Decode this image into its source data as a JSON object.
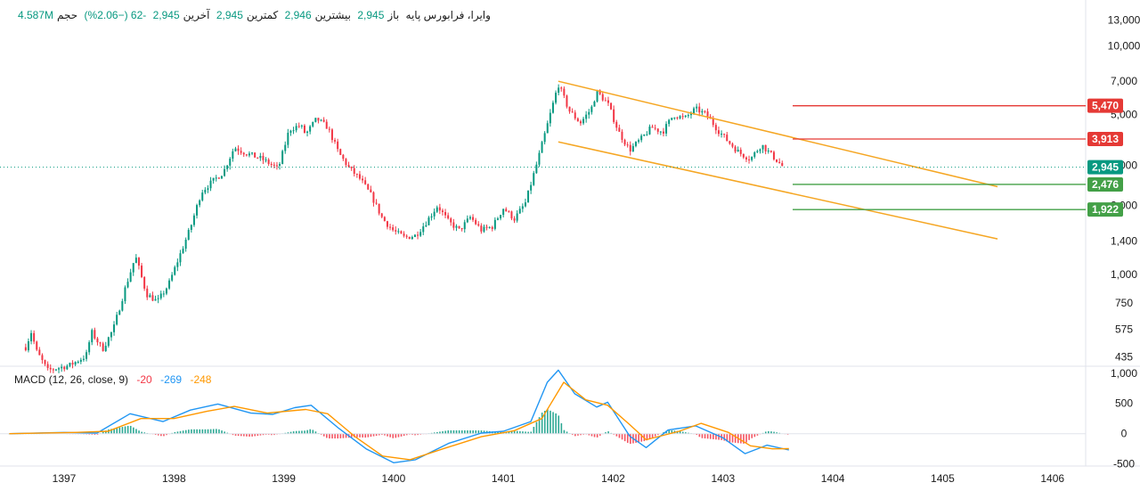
{
  "legend": {
    "symbol": "وایرا، فرابورس پایه",
    "open_label": "باز",
    "open": "2,945",
    "high_label": "بیشترین",
    "high": "2,946",
    "low_label": "کمترین",
    "low": "2,945",
    "close_label": "آخرین",
    "close": "2,945",
    "change": "-62 (−2.06%)",
    "volume_label": "حجم",
    "volume": "4.587M"
  },
  "macd_legend": {
    "label": "MACD (12, 26, close, 9)",
    "histogram": "-20",
    "macd": "-269",
    "signal": "-248"
  },
  "colors": {
    "up": "#089981",
    "down": "#f23645",
    "channel": "#f5a623",
    "macd_line": "#2196f3",
    "signal_line": "#ff9800",
    "resistance": "#e53935",
    "support": "#43a047",
    "last_price": "#089981"
  },
  "chart_data": [
    {
      "type": "candlestick",
      "scale": "log",
      "x_axis_ticks": [
        "1397",
        "1398",
        "1399",
        "1400",
        "1401",
        "1402",
        "1403",
        "1404",
        "1405",
        "1406"
      ],
      "y_axis_ticks": [
        "13,000",
        "10,000",
        "7,000",
        "5,000",
        "3,000",
        "2,000",
        "1,400",
        "1,000",
        "750",
        "575",
        "435"
      ],
      "ylim": [
        400,
        14000
      ],
      "price_path": [
        {
          "t": 1396.65,
          "p": 480
        },
        {
          "t": 1396.7,
          "p": 560
        },
        {
          "t": 1396.75,
          "p": 460
        },
        {
          "t": 1396.85,
          "p": 380
        },
        {
          "t": 1396.95,
          "p": 390
        },
        {
          "t": 1397.05,
          "p": 400
        },
        {
          "t": 1397.2,
          "p": 440
        },
        {
          "t": 1397.25,
          "p": 560
        },
        {
          "t": 1397.35,
          "p": 470
        },
        {
          "t": 1397.45,
          "p": 580
        },
        {
          "t": 1397.55,
          "p": 850
        },
        {
          "t": 1397.65,
          "p": 1200
        },
        {
          "t": 1397.75,
          "p": 820
        },
        {
          "t": 1397.85,
          "p": 760
        },
        {
          "t": 1397.95,
          "p": 900
        },
        {
          "t": 1398.05,
          "p": 1200
        },
        {
          "t": 1398.15,
          "p": 1600
        },
        {
          "t": 1398.25,
          "p": 2300
        },
        {
          "t": 1398.35,
          "p": 2550
        },
        {
          "t": 1398.45,
          "p": 2800
        },
        {
          "t": 1398.55,
          "p": 3600
        },
        {
          "t": 1398.65,
          "p": 3400
        },
        {
          "t": 1398.8,
          "p": 3200
        },
        {
          "t": 1398.95,
          "p": 2900
        },
        {
          "t": 1399.05,
          "p": 4300
        },
        {
          "t": 1399.15,
          "p": 4500
        },
        {
          "t": 1399.2,
          "p": 4100
        },
        {
          "t": 1399.3,
          "p": 4800
        },
        {
          "t": 1399.4,
          "p": 4400
        },
        {
          "t": 1399.5,
          "p": 3400
        },
        {
          "t": 1399.6,
          "p": 2900
        },
        {
          "t": 1399.7,
          "p": 2600
        },
        {
          "t": 1399.8,
          "p": 2200
        },
        {
          "t": 1399.9,
          "p": 1750
        },
        {
          "t": 1400.0,
          "p": 1550
        },
        {
          "t": 1400.1,
          "p": 1450
        },
        {
          "t": 1400.2,
          "p": 1480
        },
        {
          "t": 1400.3,
          "p": 1700
        },
        {
          "t": 1400.4,
          "p": 2000
        },
        {
          "t": 1400.5,
          "p": 1700
        },
        {
          "t": 1400.6,
          "p": 1560
        },
        {
          "t": 1400.7,
          "p": 1780
        },
        {
          "t": 1400.8,
          "p": 1560
        },
        {
          "t": 1400.9,
          "p": 1620
        },
        {
          "t": 1401.0,
          "p": 1950
        },
        {
          "t": 1401.1,
          "p": 1750
        },
        {
          "t": 1401.2,
          "p": 2050
        },
        {
          "t": 1401.3,
          "p": 3000
        },
        {
          "t": 1401.4,
          "p": 4500
        },
        {
          "t": 1401.5,
          "p": 6800
        },
        {
          "t": 1401.6,
          "p": 5200
        },
        {
          "t": 1401.7,
          "p": 4600
        },
        {
          "t": 1401.8,
          "p": 5300
        },
        {
          "t": 1401.85,
          "p": 6300
        },
        {
          "t": 1401.95,
          "p": 5600
        },
        {
          "t": 1402.05,
          "p": 4200
        },
        {
          "t": 1402.15,
          "p": 3500
        },
        {
          "t": 1402.25,
          "p": 3900
        },
        {
          "t": 1402.35,
          "p": 4400
        },
        {
          "t": 1402.45,
          "p": 4200
        },
        {
          "t": 1402.55,
          "p": 5000
        },
        {
          "t": 1402.65,
          "p": 4800
        },
        {
          "t": 1402.75,
          "p": 5300
        },
        {
          "t": 1402.85,
          "p": 5000
        },
        {
          "t": 1402.95,
          "p": 4300
        },
        {
          "t": 1403.05,
          "p": 3800
        },
        {
          "t": 1403.15,
          "p": 3400
        },
        {
          "t": 1403.25,
          "p": 3200
        },
        {
          "t": 1403.35,
          "p": 3700
        },
        {
          "t": 1403.45,
          "p": 3300
        },
        {
          "t": 1403.55,
          "p": 2945
        }
      ],
      "channel_upper": [
        {
          "t": 1401.5,
          "p": 7000
        },
        {
          "t": 1405.5,
          "p": 2420
        }
      ],
      "channel_lower": [
        {
          "t": 1401.5,
          "p": 3800
        },
        {
          "t": 1405.5,
          "p": 1430
        }
      ],
      "levels": [
        {
          "value": 5470,
          "label": "5,470",
          "kind": "resistance"
        },
        {
          "value": 3913,
          "label": "3,913",
          "kind": "resistance"
        },
        {
          "value": 2476,
          "label": "2,476",
          "kind": "support"
        },
        {
          "value": 1922,
          "label": "1,922",
          "kind": "support"
        }
      ],
      "last_price": {
        "value": 2945,
        "label": "2,945"
      }
    },
    {
      "type": "macd",
      "y_axis_ticks": [
        "1,000",
        "500",
        "0",
        "-500"
      ],
      "ylim": [
        -520,
        1100
      ],
      "macd": [
        {
          "t": 1396.5,
          "v": 0
        },
        {
          "t": 1397.0,
          "v": 20
        },
        {
          "t": 1397.3,
          "v": 10
        },
        {
          "t": 1397.6,
          "v": 330
        },
        {
          "t": 1397.9,
          "v": 200
        },
        {
          "t": 1398.15,
          "v": 390
        },
        {
          "t": 1398.4,
          "v": 490
        },
        {
          "t": 1398.7,
          "v": 340
        },
        {
          "t": 1398.9,
          "v": 320
        },
        {
          "t": 1399.1,
          "v": 430
        },
        {
          "t": 1399.25,
          "v": 470
        },
        {
          "t": 1399.5,
          "v": 90
        },
        {
          "t": 1399.75,
          "v": -250
        },
        {
          "t": 1400.0,
          "v": -480
        },
        {
          "t": 1400.2,
          "v": -430
        },
        {
          "t": 1400.5,
          "v": -160
        },
        {
          "t": 1400.8,
          "v": 10
        },
        {
          "t": 1401.0,
          "v": 40
        },
        {
          "t": 1401.25,
          "v": 200
        },
        {
          "t": 1401.4,
          "v": 850
        },
        {
          "t": 1401.5,
          "v": 1050
        },
        {
          "t": 1401.65,
          "v": 660
        },
        {
          "t": 1401.85,
          "v": 440
        },
        {
          "t": 1401.95,
          "v": 520
        },
        {
          "t": 1402.15,
          "v": -40
        },
        {
          "t": 1402.3,
          "v": -230
        },
        {
          "t": 1402.5,
          "v": 60
        },
        {
          "t": 1402.75,
          "v": 130
        },
        {
          "t": 1403.0,
          "v": -70
        },
        {
          "t": 1403.2,
          "v": -330
        },
        {
          "t": 1403.4,
          "v": -190
        },
        {
          "t": 1403.6,
          "v": -269
        }
      ],
      "signal": [
        {
          "t": 1396.5,
          "v": 0
        },
        {
          "t": 1397.1,
          "v": 20
        },
        {
          "t": 1397.4,
          "v": 40
        },
        {
          "t": 1397.7,
          "v": 250
        },
        {
          "t": 1398.0,
          "v": 250
        },
        {
          "t": 1398.3,
          "v": 370
        },
        {
          "t": 1398.55,
          "v": 450
        },
        {
          "t": 1398.85,
          "v": 340
        },
        {
          "t": 1399.2,
          "v": 400
        },
        {
          "t": 1399.4,
          "v": 330
        },
        {
          "t": 1399.65,
          "v": -50
        },
        {
          "t": 1399.9,
          "v": -370
        },
        {
          "t": 1400.15,
          "v": -430
        },
        {
          "t": 1400.45,
          "v": -250
        },
        {
          "t": 1400.8,
          "v": -50
        },
        {
          "t": 1401.1,
          "v": 50
        },
        {
          "t": 1401.35,
          "v": 250
        },
        {
          "t": 1401.55,
          "v": 850
        },
        {
          "t": 1401.75,
          "v": 560
        },
        {
          "t": 1401.95,
          "v": 470
        },
        {
          "t": 1402.15,
          "v": 150
        },
        {
          "t": 1402.3,
          "v": -100
        },
        {
          "t": 1402.6,
          "v": 40
        },
        {
          "t": 1402.8,
          "v": 170
        },
        {
          "t": 1403.05,
          "v": 20
        },
        {
          "t": 1403.25,
          "v": -200
        },
        {
          "t": 1403.45,
          "v": -250
        },
        {
          "t": 1403.6,
          "v": -248
        }
      ]
    }
  ]
}
